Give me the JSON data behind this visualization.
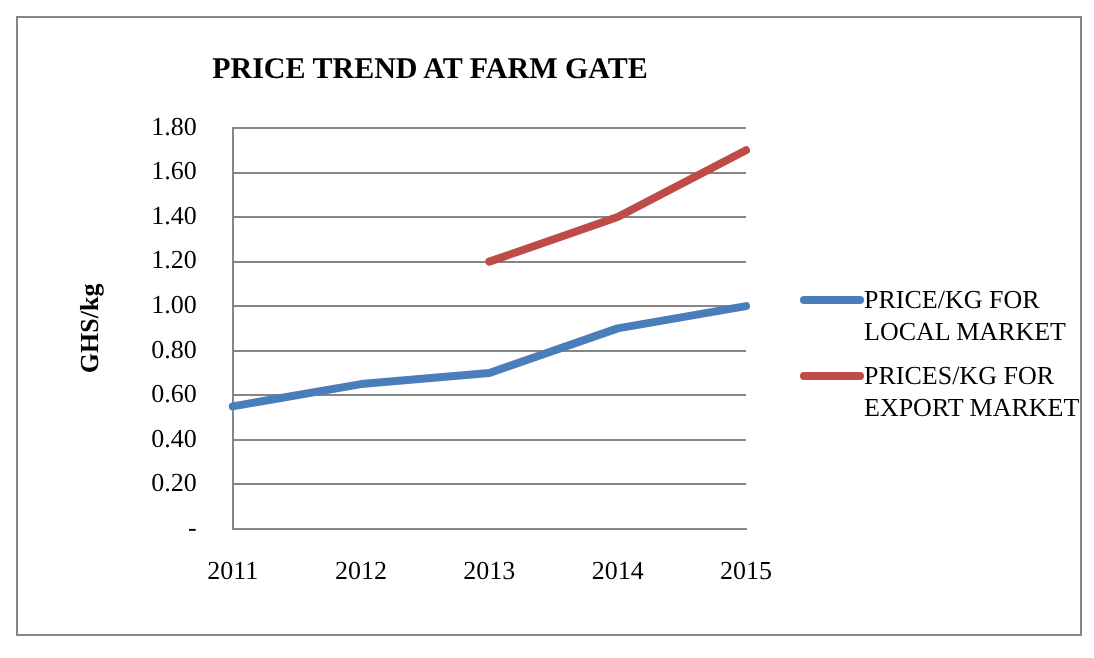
{
  "chart_data": {
    "type": "line",
    "title": "PRICE TREND AT FARM GATE",
    "ylabel": "GHS/kg",
    "categories": [
      "2011",
      "2012",
      "2013",
      "2014",
      "2015"
    ],
    "series": [
      {
        "name": "PRICE/KG FOR LOCAL MARKET",
        "color": "#4a7ebb",
        "values": [
          0.55,
          0.65,
          0.7,
          0.9,
          1.0
        ]
      },
      {
        "name": "PRICES/KG FOR EXPORT MARKET",
        "color": "#be4b48",
        "values": [
          null,
          null,
          1.2,
          1.4,
          1.7
        ]
      }
    ],
    "ylim": [
      0,
      1.8
    ],
    "yticks": [
      {
        "value": 0,
        "label": "-"
      },
      {
        "value": 0.2,
        "label": "0.20"
      },
      {
        "value": 0.4,
        "label": "0.40"
      },
      {
        "value": 0.6,
        "label": "0.60"
      },
      {
        "value": 0.8,
        "label": "0.80"
      },
      {
        "value": 1.0,
        "label": "1.00"
      },
      {
        "value": 1.2,
        "label": "1.20"
      },
      {
        "value": 1.4,
        "label": "1.40"
      },
      {
        "value": 1.6,
        "label": "1.60"
      },
      {
        "value": 1.8,
        "label": "1.80"
      }
    ],
    "grid": "y",
    "legend": "right",
    "marker": "none",
    "line_style": "solid"
  }
}
